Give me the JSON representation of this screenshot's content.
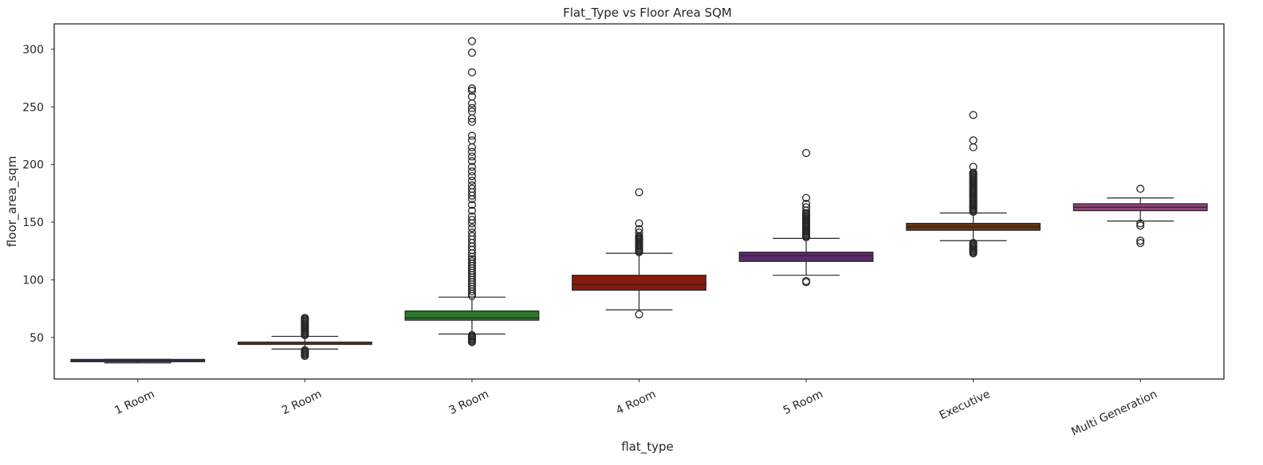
{
  "chart_data": {
    "type": "box",
    "title": "Flat_Type vs Floor Area SQM",
    "xlabel": "flat_type",
    "ylabel": "floor_area_sqm",
    "ylim": [
      14,
      322
    ],
    "yticks": [
      50,
      100,
      150,
      200,
      250,
      300
    ],
    "grid": false,
    "legend": "none",
    "categories": [
      "1 Room",
      "2 Room",
      "3 Room",
      "4 Room",
      "5 Room",
      "Executive",
      "Multi Generation"
    ],
    "boxes": [
      {
        "category": "1 Room",
        "color": "#2a3a7a",
        "q1": 29,
        "median": 30,
        "q3": 31,
        "whisker_low": 28,
        "whisker_high": 31,
        "outliers": []
      },
      {
        "category": "2 Room",
        "color": "#b85a22",
        "q1": 44,
        "median": 45,
        "q3": 46,
        "whisker_low": 40,
        "whisker_high": 51,
        "outliers": [
          34,
          35,
          36,
          37,
          38,
          39,
          52,
          53,
          54,
          55,
          56,
          57,
          58,
          59,
          60,
          61,
          62,
          63,
          64,
          65,
          66,
          67
        ]
      },
      {
        "category": "3 Room",
        "color": "#2a7a2a",
        "q1": 65,
        "median": 67,
        "q3": 73,
        "whisker_low": 53,
        "whisker_high": 85,
        "outliers": [
          46,
          47,
          48,
          49,
          50,
          51,
          52,
          86,
          88,
          90,
          92,
          94,
          96,
          98,
          100,
          102,
          104,
          106,
          108,
          110,
          112,
          114,
          116,
          118,
          120,
          123,
          126,
          129,
          132,
          135,
          138,
          141,
          145,
          149,
          152,
          155,
          160,
          165,
          170,
          173,
          176,
          179,
          182,
          186,
          190,
          194,
          198,
          203,
          207,
          211,
          215,
          221,
          225,
          237,
          240,
          246,
          249,
          253,
          259,
          264,
          266,
          280,
          297,
          307
        ]
      },
      {
        "category": "4 Room",
        "color": "#8a1a0e",
        "q1": 91,
        "median": 96,
        "q3": 104,
        "whisker_low": 74,
        "whisker_high": 123,
        "outliers": [
          70,
          124,
          125,
          126,
          127,
          128,
          129,
          130,
          131,
          132,
          133,
          134,
          135,
          136,
          137,
          138,
          141,
          144,
          149,
          176
        ]
      },
      {
        "category": "5 Room",
        "color": "#5e2a6e",
        "q1": 116,
        "median": 121,
        "q3": 124,
        "whisker_low": 104,
        "whisker_high": 136,
        "outliers": [
          98,
          99,
          137,
          138,
          139,
          140,
          141,
          142,
          143,
          144,
          145,
          146,
          147,
          148,
          149,
          150,
          151,
          152,
          153,
          154,
          155,
          156,
          157,
          158,
          160,
          163,
          166,
          171,
          210
        ]
      },
      {
        "category": "Executive",
        "color": "#6a3410",
        "q1": 143,
        "median": 146,
        "q3": 149,
        "whisker_low": 134,
        "whisker_high": 158,
        "outliers": [
          123,
          124,
          125,
          126,
          127,
          128,
          129,
          130,
          131,
          132,
          159,
          160,
          161,
          162,
          163,
          164,
          165,
          166,
          167,
          168,
          169,
          170,
          171,
          172,
          173,
          174,
          175,
          176,
          177,
          178,
          179,
          180,
          181,
          182,
          183,
          184,
          185,
          186,
          187,
          188,
          189,
          190,
          191,
          192,
          193,
          198,
          215,
          221,
          243
        ]
      },
      {
        "category": "Multi Generation",
        "color": "#96407e",
        "q1": 160,
        "median": 163,
        "q3": 166,
        "whisker_low": 151,
        "whisker_high": 171,
        "outliers": [
          132,
          134,
          147,
          149,
          179
        ]
      }
    ]
  }
}
